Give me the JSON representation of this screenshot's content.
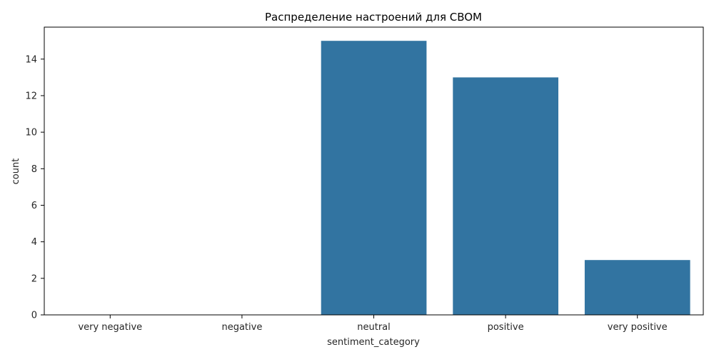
{
  "chart_data": {
    "type": "bar",
    "title": "Распределение настроений для CBOM",
    "xlabel": "sentiment_category",
    "ylabel": "count",
    "categories": [
      "very negative",
      "negative",
      "neutral",
      "positive",
      "very positive"
    ],
    "values": [
      0,
      0,
      15,
      13,
      3
    ],
    "ylim": [
      0,
      15.75
    ],
    "yticks": [
      0,
      2,
      4,
      6,
      8,
      10,
      12,
      14
    ],
    "grid": false,
    "bar_color": "#3274a1"
  }
}
